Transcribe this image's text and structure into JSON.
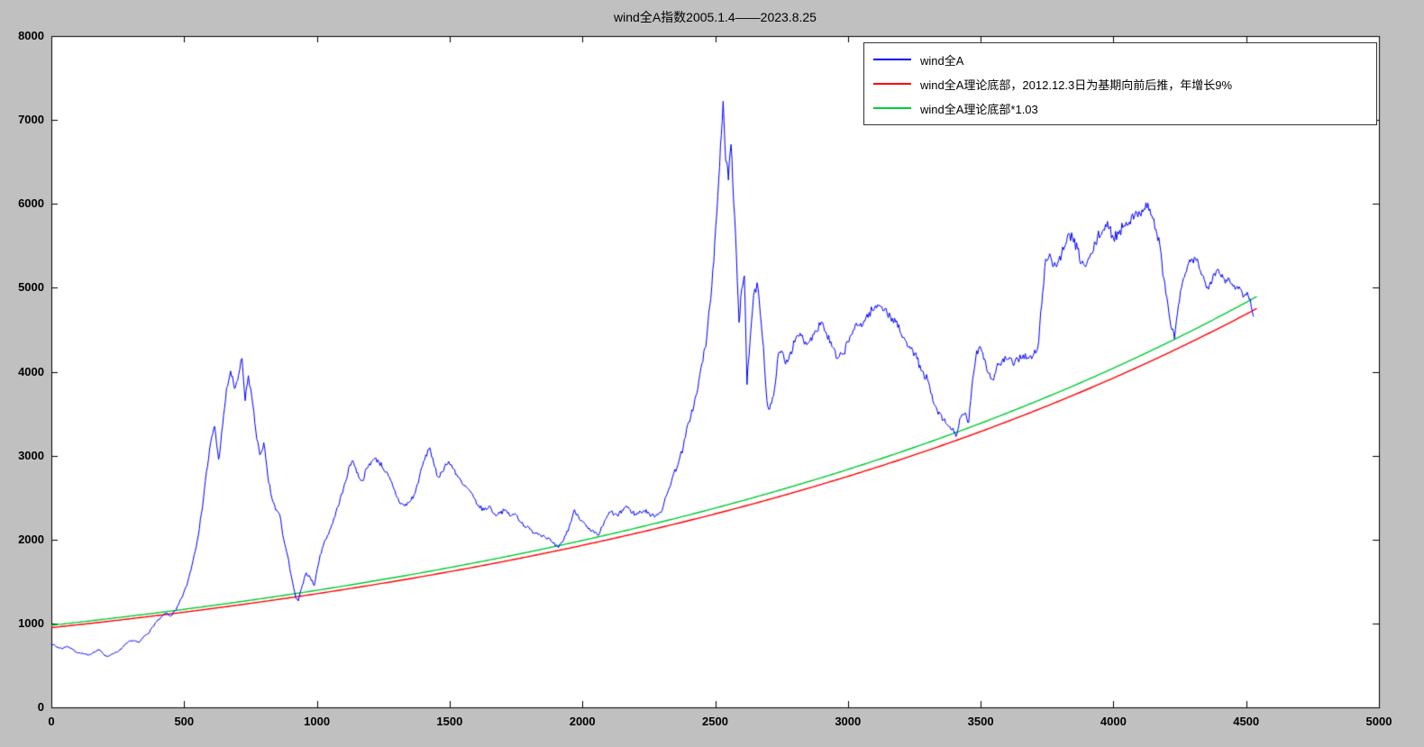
{
  "figure": {
    "background_color": "#c0c0c0",
    "plot_background_color": "#ffffff"
  },
  "title": "wind全A指数2005.1.4——2023.8.25",
  "legend": {
    "items": [
      {
        "label": "wind全A",
        "color": "#0000FF"
      },
      {
        "label": "wind全A理论底部，2012.12.3日为基期向前后推，年增长9%",
        "color": "#FF0000"
      },
      {
        "label": "wind全A理论底部*1.03",
        "color": "#00CC33"
      }
    ]
  },
  "chart_data": {
    "type": "line",
    "title": "wind全A指数2005.1.4——2023.8.25",
    "xlabel": "",
    "ylabel": "",
    "xlim": [
      0,
      5000
    ],
    "ylim": [
      0,
      8000
    ],
    "x_ticks": [
      0,
      500,
      1000,
      1500,
      2000,
      2500,
      3000,
      3500,
      4000,
      4500,
      5000
    ],
    "y_ticks": [
      0,
      1000,
      2000,
      3000,
      4000,
      5000,
      6000,
      7000,
      8000
    ],
    "grid": false,
    "legend_position": "top-right",
    "series": [
      {
        "name": "wind全A",
        "color": "#0000FF",
        "style": "noisy-line",
        "noise_rel": 0.012,
        "points": [
          [
            0,
            760
          ],
          [
            20,
            720
          ],
          [
            40,
            700
          ],
          [
            60,
            730
          ],
          [
            80,
            690
          ],
          [
            100,
            650
          ],
          [
            120,
            640
          ],
          [
            140,
            620
          ],
          [
            160,
            660
          ],
          [
            180,
            690
          ],
          [
            200,
            620
          ],
          [
            215,
            610
          ],
          [
            230,
            640
          ],
          [
            250,
            660
          ],
          [
            270,
            720
          ],
          [
            290,
            780
          ],
          [
            310,
            800
          ],
          [
            330,
            770
          ],
          [
            350,
            850
          ],
          [
            370,
            900
          ],
          [
            390,
            1000
          ],
          [
            410,
            1060
          ],
          [
            430,
            1120
          ],
          [
            450,
            1090
          ],
          [
            470,
            1160
          ],
          [
            490,
            1300
          ],
          [
            510,
            1450
          ],
          [
            530,
            1700
          ],
          [
            550,
            2000
          ],
          [
            565,
            2300
          ],
          [
            580,
            2700
          ],
          [
            600,
            3150
          ],
          [
            615,
            3350
          ],
          [
            630,
            2950
          ],
          [
            645,
            3350
          ],
          [
            660,
            3800
          ],
          [
            675,
            4000
          ],
          [
            690,
            3800
          ],
          [
            705,
            3950
          ],
          [
            718,
            4150
          ],
          [
            730,
            3650
          ],
          [
            742,
            3950
          ],
          [
            755,
            3700
          ],
          [
            770,
            3300
          ],
          [
            785,
            3000
          ],
          [
            800,
            3150
          ],
          [
            815,
            2750
          ],
          [
            830,
            2500
          ],
          [
            845,
            2350
          ],
          [
            860,
            2300
          ],
          [
            875,
            2000
          ],
          [
            890,
            1800
          ],
          [
            905,
            1550
          ],
          [
            920,
            1300
          ],
          [
            930,
            1270
          ],
          [
            945,
            1450
          ],
          [
            960,
            1600
          ],
          [
            975,
            1550
          ],
          [
            990,
            1450
          ],
          [
            1005,
            1700
          ],
          [
            1020,
            1900
          ],
          [
            1040,
            2050
          ],
          [
            1060,
            2200
          ],
          [
            1080,
            2400
          ],
          [
            1100,
            2600
          ],
          [
            1120,
            2850
          ],
          [
            1135,
            2950
          ],
          [
            1150,
            2800
          ],
          [
            1170,
            2700
          ],
          [
            1190,
            2850
          ],
          [
            1210,
            2950
          ],
          [
            1230,
            2950
          ],
          [
            1250,
            2850
          ],
          [
            1270,
            2750
          ],
          [
            1290,
            2600
          ],
          [
            1310,
            2450
          ],
          [
            1330,
            2400
          ],
          [
            1350,
            2450
          ],
          [
            1370,
            2550
          ],
          [
            1390,
            2800
          ],
          [
            1410,
            3000
          ],
          [
            1425,
            3100
          ],
          [
            1440,
            2900
          ],
          [
            1455,
            2750
          ],
          [
            1470,
            2800
          ],
          [
            1485,
            2900
          ],
          [
            1500,
            2900
          ],
          [
            1515,
            2850
          ],
          [
            1530,
            2750
          ],
          [
            1550,
            2650
          ],
          [
            1570,
            2600
          ],
          [
            1590,
            2500
          ],
          [
            1610,
            2400
          ],
          [
            1630,
            2350
          ],
          [
            1650,
            2400
          ],
          [
            1670,
            2300
          ],
          [
            1690,
            2320
          ],
          [
            1710,
            2350
          ],
          [
            1730,
            2280
          ],
          [
            1750,
            2300
          ],
          [
            1770,
            2200
          ],
          [
            1790,
            2150
          ],
          [
            1810,
            2100
          ],
          [
            1830,
            2080
          ],
          [
            1850,
            2050
          ],
          [
            1870,
            2020
          ],
          [
            1890,
            1950
          ],
          [
            1910,
            1900
          ],
          [
            1930,
            2000
          ],
          [
            1950,
            2150
          ],
          [
            1970,
            2350
          ],
          [
            1985,
            2280
          ],
          [
            2000,
            2220
          ],
          [
            2015,
            2150
          ],
          [
            2030,
            2100
          ],
          [
            2045,
            2080
          ],
          [
            2060,
            2050
          ],
          [
            2075,
            2150
          ],
          [
            2090,
            2250
          ],
          [
            2105,
            2330
          ],
          [
            2120,
            2300
          ],
          [
            2135,
            2280
          ],
          [
            2150,
            2350
          ],
          [
            2165,
            2400
          ],
          [
            2180,
            2350
          ],
          [
            2200,
            2300
          ],
          [
            2220,
            2330
          ],
          [
            2240,
            2350
          ],
          [
            2260,
            2280
          ],
          [
            2280,
            2300
          ],
          [
            2300,
            2350
          ],
          [
            2320,
            2550
          ],
          [
            2340,
            2750
          ],
          [
            2360,
            2900
          ],
          [
            2380,
            3100
          ],
          [
            2400,
            3400
          ],
          [
            2420,
            3600
          ],
          [
            2435,
            3800
          ],
          [
            2450,
            4100
          ],
          [
            2465,
            4300
          ],
          [
            2480,
            4800
          ],
          [
            2495,
            5300
          ],
          [
            2510,
            6100
          ],
          [
            2520,
            6700
          ],
          [
            2530,
            7230
          ],
          [
            2540,
            6500
          ],
          [
            2550,
            6300
          ],
          [
            2560,
            6700
          ],
          [
            2570,
            6000
          ],
          [
            2580,
            5400
          ],
          [
            2590,
            4600
          ],
          [
            2600,
            5000
          ],
          [
            2610,
            5150
          ],
          [
            2620,
            3850
          ],
          [
            2632,
            4400
          ],
          [
            2645,
            4900
          ],
          [
            2658,
            5050
          ],
          [
            2670,
            4700
          ],
          [
            2682,
            4300
          ],
          [
            2695,
            3650
          ],
          [
            2705,
            3550
          ],
          [
            2720,
            3700
          ],
          [
            2735,
            4150
          ],
          [
            2750,
            4250
          ],
          [
            2765,
            4100
          ],
          [
            2780,
            4200
          ],
          [
            2800,
            4350
          ],
          [
            2820,
            4450
          ],
          [
            2840,
            4350
          ],
          [
            2860,
            4400
          ],
          [
            2880,
            4500
          ],
          [
            2900,
            4600
          ],
          [
            2920,
            4450
          ],
          [
            2940,
            4300
          ],
          [
            2960,
            4150
          ],
          [
            2980,
            4200
          ],
          [
            3000,
            4350
          ],
          [
            3020,
            4500
          ],
          [
            3040,
            4550
          ],
          [
            3060,
            4600
          ],
          [
            3080,
            4700
          ],
          [
            3100,
            4750
          ],
          [
            3120,
            4800
          ],
          [
            3140,
            4750
          ],
          [
            3160,
            4650
          ],
          [
            3180,
            4600
          ],
          [
            3200,
            4450
          ],
          [
            3220,
            4350
          ],
          [
            3240,
            4300
          ],
          [
            3260,
            4150
          ],
          [
            3280,
            4000
          ],
          [
            3300,
            3900
          ],
          [
            3320,
            3650
          ],
          [
            3340,
            3500
          ],
          [
            3360,
            3420
          ],
          [
            3380,
            3350
          ],
          [
            3400,
            3280
          ],
          [
            3410,
            3250
          ],
          [
            3425,
            3450
          ],
          [
            3440,
            3500
          ],
          [
            3455,
            3400
          ],
          [
            3470,
            3900
          ],
          [
            3485,
            4250
          ],
          [
            3500,
            4300
          ],
          [
            3515,
            4150
          ],
          [
            3530,
            3980
          ],
          [
            3545,
            3900
          ],
          [
            3560,
            4050
          ],
          [
            3580,
            4120
          ],
          [
            3600,
            4150
          ],
          [
            3620,
            4100
          ],
          [
            3640,
            4150
          ],
          [
            3660,
            4200
          ],
          [
            3680,
            4150
          ],
          [
            3700,
            4200
          ],
          [
            3715,
            4280
          ],
          [
            3730,
            4800
          ],
          [
            3745,
            5350
          ],
          [
            3760,
            5400
          ],
          [
            3775,
            5250
          ],
          [
            3790,
            5300
          ],
          [
            3805,
            5400
          ],
          [
            3820,
            5500
          ],
          [
            3835,
            5650
          ],
          [
            3850,
            5550
          ],
          [
            3865,
            5450
          ],
          [
            3880,
            5300
          ],
          [
            3895,
            5250
          ],
          [
            3910,
            5350
          ],
          [
            3925,
            5450
          ],
          [
            3940,
            5600
          ],
          [
            3955,
            5650
          ],
          [
            3970,
            5750
          ],
          [
            3985,
            5700
          ],
          [
            4000,
            5600
          ],
          [
            4020,
            5650
          ],
          [
            4040,
            5750
          ],
          [
            4060,
            5800
          ],
          [
            4080,
            5850
          ],
          [
            4100,
            5900
          ],
          [
            4115,
            5950
          ],
          [
            4130,
            6000
          ],
          [
            4145,
            5850
          ],
          [
            4160,
            5700
          ],
          [
            4175,
            5500
          ],
          [
            4190,
            5100
          ],
          [
            4205,
            4800
          ],
          [
            4220,
            4500
          ],
          [
            4230,
            4400
          ],
          [
            4245,
            4800
          ],
          [
            4260,
            5050
          ],
          [
            4275,
            5200
          ],
          [
            4290,
            5300
          ],
          [
            4305,
            5350
          ],
          [
            4320,
            5300
          ],
          [
            4335,
            5150
          ],
          [
            4350,
            5000
          ],
          [
            4365,
            5080
          ],
          [
            4380,
            5180
          ],
          [
            4395,
            5220
          ],
          [
            4410,
            5150
          ],
          [
            4425,
            5100
          ],
          [
            4440,
            5050
          ],
          [
            4455,
            5020
          ],
          [
            4470,
            5000
          ],
          [
            4485,
            4950
          ],
          [
            4500,
            4920
          ],
          [
            4515,
            4880
          ],
          [
            4530,
            4650
          ]
        ]
      },
      {
        "name": "wind全A理论底部，2012.12.3日为基期向前后推，年增长9%",
        "color": "#FF0000",
        "style": "smooth-line",
        "model": {
          "base_value": 950,
          "annual_growth_pct": 9,
          "trading_days_per_year": 243,
          "x_start": 0,
          "x_end": 4540
        },
        "points": [
          [
            0,
            950
          ],
          [
            500,
            1134
          ],
          [
            1000,
            1354
          ],
          [
            1500,
            1617
          ],
          [
            2000,
            1931
          ],
          [
            2500,
            2305
          ],
          [
            3000,
            2753
          ],
          [
            3500,
            3287
          ],
          [
            4000,
            3924
          ],
          [
            4500,
            4685
          ],
          [
            4540,
            4754
          ]
        ]
      },
      {
        "name": "wind全A理论底部*1.03",
        "color": "#00CC33",
        "style": "smooth-line",
        "derived": {
          "from": "wind全A理论底部",
          "multiplier": 1.03
        },
        "points": [
          [
            0,
            979
          ],
          [
            500,
            1168
          ],
          [
            1000,
            1395
          ],
          [
            1500,
            1665
          ],
          [
            2000,
            1989
          ],
          [
            2500,
            2374
          ],
          [
            3000,
            2836
          ],
          [
            3500,
            3386
          ],
          [
            4000,
            4042
          ],
          [
            4500,
            4826
          ],
          [
            4540,
            4897
          ]
        ]
      }
    ]
  }
}
